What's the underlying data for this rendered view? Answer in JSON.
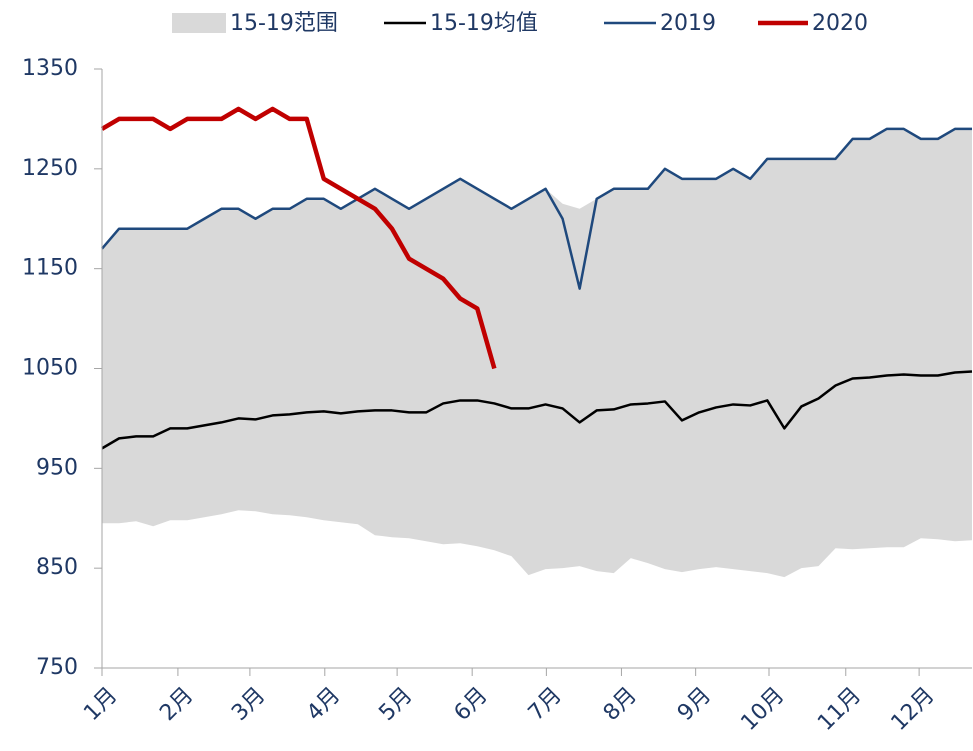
{
  "chart_data": {
    "type": "line",
    "x": [
      1,
      2,
      3,
      4,
      5,
      6,
      7,
      8,
      9,
      10,
      11,
      12,
      13,
      14,
      15,
      16,
      17,
      18,
      19,
      20,
      21,
      22,
      23,
      24,
      25,
      26,
      27,
      28,
      29,
      30,
      31,
      32,
      33,
      34,
      35,
      36,
      37,
      38,
      39,
      40,
      41,
      42,
      43,
      44,
      45,
      46,
      47,
      48,
      49,
      50,
      51,
      52
    ],
    "xlim": [
      1,
      52
    ],
    "xticks": [
      {
        "value": 1,
        "label": "1月"
      },
      {
        "value": 5.45,
        "label": "2月"
      },
      {
        "value": 9.67,
        "label": "3月"
      },
      {
        "value": 14.06,
        "label": "4月"
      },
      {
        "value": 18.3,
        "label": "5月"
      },
      {
        "value": 22.7,
        "label": "6月"
      },
      {
        "value": 27.05,
        "label": "7月"
      },
      {
        "value": 31.45,
        "label": "8月"
      },
      {
        "value": 35.8,
        "label": "9月"
      },
      {
        "value": 40.1,
        "label": "10月"
      },
      {
        "value": 44.6,
        "label": "11月"
      },
      {
        "value": 48.9,
        "label": "12月"
      }
    ],
    "ylim": [
      750,
      1350
    ],
    "yticks": [
      750,
      850,
      950,
      1050,
      1150,
      1250,
      1350
    ],
    "series": [
      {
        "name": "15-19范围",
        "color": "#d9d9d9",
        "high": [
          1170,
          1190,
          1190,
          1190,
          1190,
          1190,
          1200,
          1210,
          1210,
          1200,
          1210,
          1210,
          1220,
          1220,
          1210,
          1220,
          1230,
          1220,
          1210,
          1220,
          1230,
          1240,
          1230,
          1220,
          1210,
          1220,
          1230,
          1215,
          1210,
          1220,
          1230,
          1230,
          1230,
          1250,
          1240,
          1240,
          1240,
          1250,
          1240,
          1260,
          1260,
          1260,
          1260,
          1260,
          1280,
          1280,
          1290,
          1290,
          1280,
          1280,
          1290,
          1290
        ],
        "low": [
          895,
          895,
          897,
          892,
          898,
          898,
          901,
          904,
          908,
          907,
          904,
          903,
          901,
          898,
          896,
          894,
          883,
          881,
          880,
          877,
          874,
          875,
          872,
          868,
          862,
          843,
          849,
          850,
          852,
          847,
          845,
          860,
          855,
          849,
          846,
          849,
          851,
          849,
          847,
          845,
          841,
          850,
          852,
          870,
          869,
          870,
          871,
          871,
          880,
          879,
          877,
          878
        ]
      },
      {
        "name": "15-19均值",
        "color": "#000000",
        "values": [
          970,
          980,
          982,
          982,
          990,
          990,
          993,
          996,
          1000,
          999,
          1003,
          1004,
          1006,
          1007,
          1005,
          1007,
          1008,
          1008,
          1006,
          1006,
          1015,
          1018,
          1018,
          1015,
          1010,
          1010,
          1014,
          1010,
          996,
          1008,
          1009,
          1014,
          1015,
          1017,
          998,
          1006,
          1011,
          1014,
          1013,
          1018,
          990,
          1012,
          1020,
          1033,
          1040,
          1041,
          1043,
          1044,
          1043,
          1043,
          1046,
          1047
        ]
      },
      {
        "name": "2019",
        "color": "#1f497d",
        "values": [
          1170,
          1190,
          1190,
          1190,
          1190,
          1190,
          1200,
          1210,
          1210,
          1200,
          1210,
          1210,
          1220,
          1220,
          1210,
          1220,
          1230,
          1220,
          1210,
          1220,
          1230,
          1240,
          1230,
          1220,
          1210,
          1220,
          1230,
          1200,
          1130,
          1220,
          1230,
          1230,
          1230,
          1250,
          1240,
          1240,
          1240,
          1250,
          1240,
          1260,
          1260,
          1260,
          1260,
          1260,
          1280,
          1280,
          1290,
          1290,
          1280,
          1280,
          1290,
          1290
        ]
      },
      {
        "name": "2020",
        "color": "#c00000",
        "values": [
          1290,
          1300,
          1300,
          1300,
          1290,
          1300,
          1300,
          1300,
          1310,
          1300,
          1310,
          1300,
          1300,
          1240,
          1230,
          1220,
          1210,
          1190,
          1160,
          1150,
          1140,
          1120,
          1110,
          1050,
          null,
          null,
          null,
          null,
          null,
          null,
          null,
          null,
          null,
          null,
          null,
          null,
          null,
          null,
          null,
          null,
          null,
          null,
          null,
          null,
          null,
          null,
          null,
          null,
          null,
          null,
          null,
          null
        ]
      }
    ]
  }
}
